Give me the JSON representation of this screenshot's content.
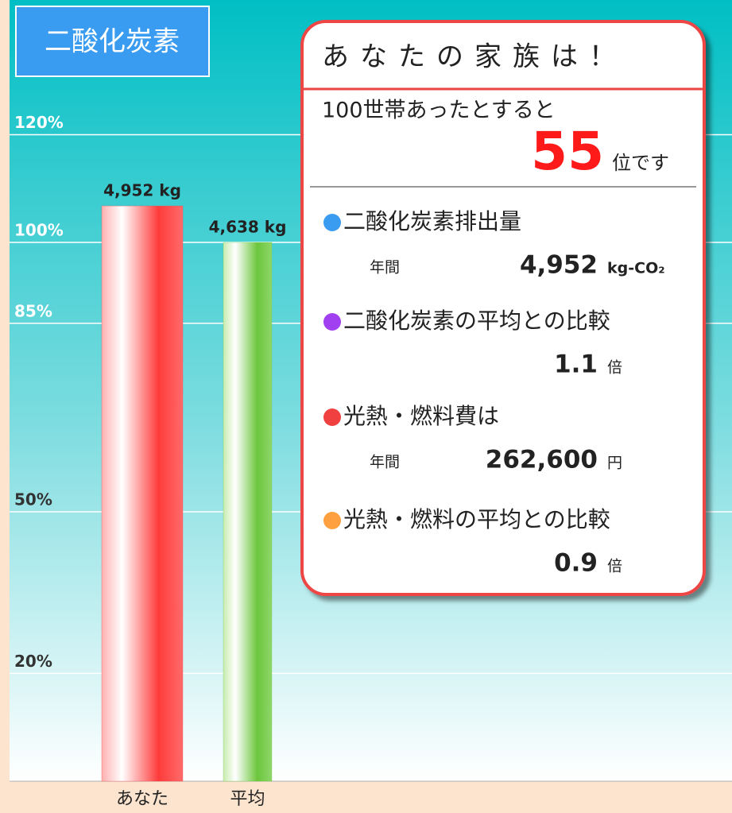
{
  "chart_data": {
    "type": "bar",
    "title": "二酸化炭素",
    "categories": [
      "あなた",
      "平均"
    ],
    "values": [
      4952,
      4638
    ],
    "value_labels": [
      "4,952 kg",
      "4,638 kg"
    ],
    "colors": [
      "#ff3b3b",
      "#6cc63c"
    ],
    "ylim": [
      0,
      6725
    ],
    "yticks": [
      {
        "value": 927.6,
        "label": "20%"
      },
      {
        "value": 2319,
        "label": "50%"
      },
      {
        "value": 3942.3,
        "label": "85%"
      },
      {
        "value": 4638,
        "label": "100%"
      },
      {
        "value": 5565.6,
        "label": "120%"
      }
    ],
    "grid": true
  },
  "panel": {
    "title": "あなたの家族は！",
    "rank_intro": "100世帯あったとすると",
    "rank": "55",
    "rank_suffix": "位です",
    "items": [
      {
        "label": "二酸化炭素排出量",
        "color": "#3a9cf0",
        "prefix": "年間",
        "value": "4,952",
        "unit": "kg-CO₂"
      },
      {
        "label": "二酸化炭素の平均との比較",
        "color": "#a040f0",
        "value": "1.1",
        "unit": "倍"
      },
      {
        "label": "光熱・燃料費は",
        "color": "#f04040",
        "prefix": "年間",
        "value": "262,600",
        "unit": "円"
      },
      {
        "label": "光熱・燃料の平均との比較",
        "color": "#ffa040",
        "value": "0.9",
        "unit": "倍"
      }
    ]
  }
}
